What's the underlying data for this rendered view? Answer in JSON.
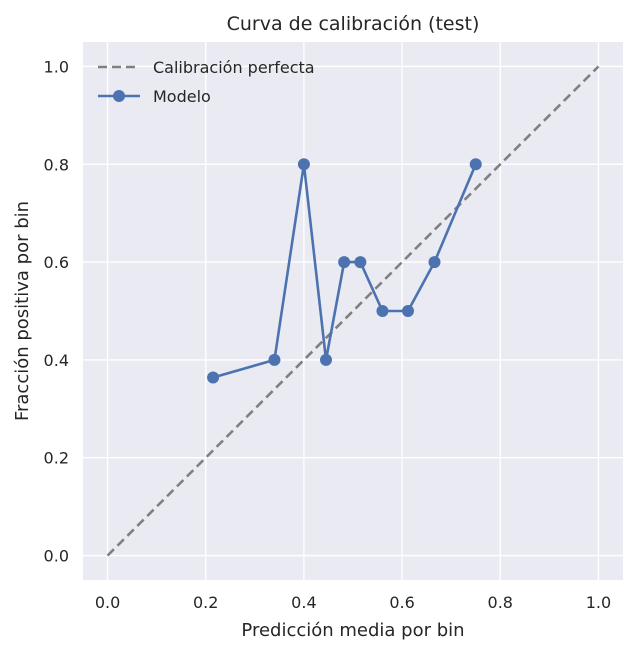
{
  "chart_data": {
    "type": "line",
    "title": "Curva de calibración (test)",
    "xlabel": "Predicción media por bin",
    "ylabel": "Fracción positiva por bin",
    "xlim": [
      -0.05,
      1.05
    ],
    "ylim": [
      -0.05,
      1.05
    ],
    "xticks": [
      "0.0",
      "0.2",
      "0.4",
      "0.6",
      "0.8",
      "1.0"
    ],
    "yticks": [
      "0.0",
      "0.2",
      "0.4",
      "0.6",
      "0.8",
      "1.0"
    ],
    "grid": true,
    "legend_position": "top-left",
    "series": [
      {
        "name": "Calibración perfecta",
        "style": "dashed",
        "color": "#808080",
        "x": [
          0.0,
          1.0
        ],
        "y": [
          0.0,
          1.0
        ]
      },
      {
        "name": "Modelo",
        "style": "solid-with-markers",
        "color": "#4c72b0",
        "x": [
          0.215,
          0.34,
          0.4,
          0.445,
          0.482,
          0.515,
          0.56,
          0.612,
          0.666,
          0.75
        ],
        "y": [
          0.364,
          0.4,
          0.8,
          0.4,
          0.6,
          0.6,
          0.5,
          0.5,
          0.6,
          0.8
        ]
      }
    ]
  },
  "colors": {
    "plot_background": "#eaeaf2",
    "grid": "#ffffff"
  }
}
